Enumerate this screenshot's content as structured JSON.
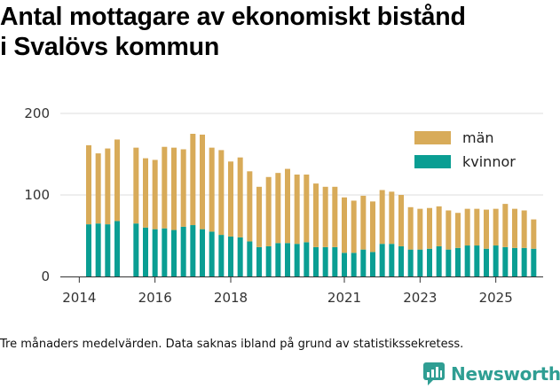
{
  "title": {
    "line1": "Antal mottagare av ekonomiskt bistånd",
    "line2": "i Svalövs kommun"
  },
  "footnote": "Tre månaders medelvärden. Data saknas ibland på grund av statistikssekretess.",
  "brand": {
    "name": "Newsworthy",
    "color": "#2f9e93"
  },
  "chart_data": {
    "type": "bar",
    "stacked": true,
    "title": "Antal mottagare av ekonomiskt bistånd i Svalövs kommun",
    "xlabel": "",
    "ylabel": "",
    "ylim": [
      0,
      200
    ],
    "yticks": [
      0,
      100,
      200
    ],
    "xlim": [
      2013.5,
      2026.25
    ],
    "xticks": [
      {
        "label": "2014",
        "value": 2014.0
      },
      {
        "label": "2016",
        "value": 2016.0
      },
      {
        "label": "2018",
        "value": 2018.0
      },
      {
        "label": "2021",
        "value": 2021.0
      },
      {
        "label": "2023",
        "value": 2023.0
      },
      {
        "label": "2025",
        "value": 2025.0
      }
    ],
    "grid": true,
    "legend_position": "top-right",
    "colors": {
      "kvinnor": "#0a9e93",
      "man": "#d8ab59",
      "grid": "#dddddd",
      "axis": "#333333"
    },
    "x": [
      2014.25,
      2014.5,
      2014.75,
      2015.0,
      2015.5,
      2015.75,
      2016.0,
      2016.25,
      2016.5,
      2016.75,
      2017.0,
      2017.25,
      2017.5,
      2017.75,
      2018.0,
      2018.25,
      2018.5,
      2018.75,
      2019.0,
      2019.25,
      2019.5,
      2019.75,
      2020.0,
      2020.25,
      2020.5,
      2020.75,
      2021.0,
      2021.25,
      2021.5,
      2021.75,
      2022.0,
      2022.25,
      2022.5,
      2022.75,
      2023.0,
      2023.25,
      2023.5,
      2023.75,
      2024.0,
      2024.25,
      2024.5,
      2024.75,
      2025.0,
      2025.25,
      2025.5,
      2025.75,
      2026.0
    ],
    "series": [
      {
        "name": "kvinnor",
        "values": [
          64,
          65,
          64,
          68,
          65,
          60,
          58,
          59,
          57,
          61,
          63,
          58,
          55,
          51,
          49,
          48,
          43,
          36,
          37,
          41,
          41,
          40,
          42,
          36,
          36,
          36,
          29,
          29,
          33,
          30,
          40,
          40,
          37,
          33,
          33,
          34,
          37,
          33,
          35,
          38,
          38,
          34,
          38,
          36,
          35,
          35,
          34
        ]
      },
      {
        "name": "män",
        "values": [
          97,
          86,
          93,
          100,
          93,
          85,
          85,
          100,
          101,
          95,
          112,
          116,
          103,
          104,
          92,
          98,
          86,
          74,
          85,
          86,
          91,
          85,
          83,
          78,
          74,
          74,
          68,
          64,
          66,
          62,
          66,
          64,
          63,
          52,
          50,
          50,
          49,
          48,
          43,
          45,
          45,
          48,
          45,
          53,
          48,
          46,
          36
        ]
      }
    ],
    "legend": [
      {
        "key": "man",
        "label": "män"
      },
      {
        "key": "kvinnor",
        "label": "kvinnor"
      }
    ]
  }
}
